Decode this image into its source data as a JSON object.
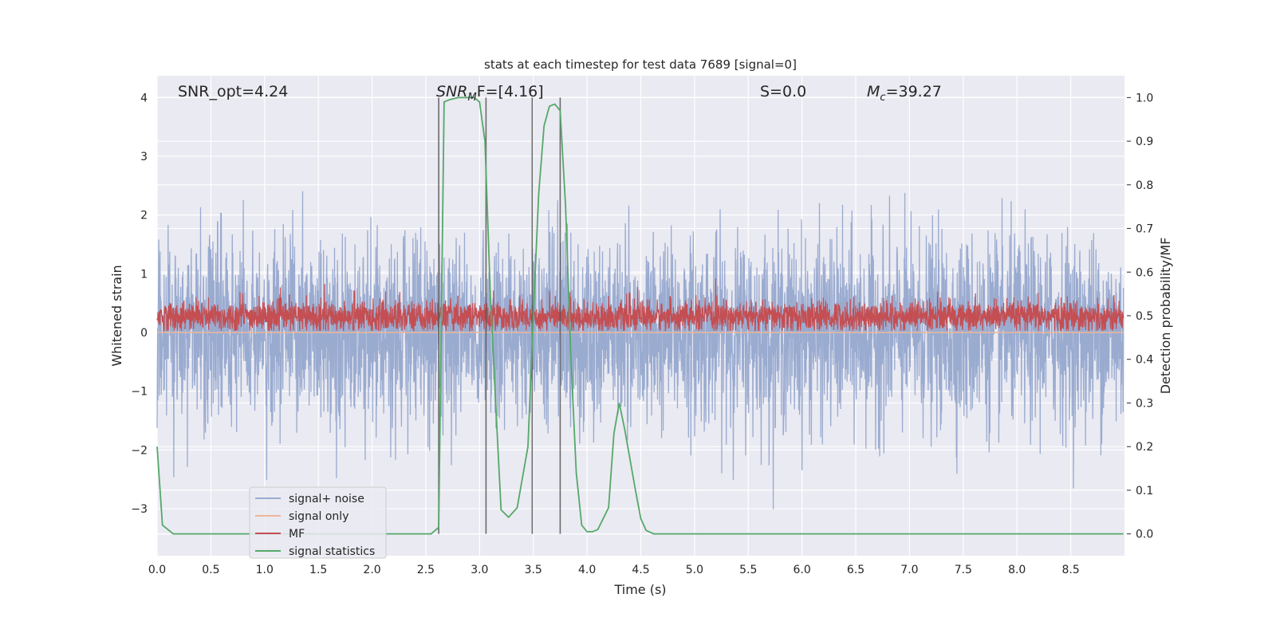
{
  "chart_data": {
    "type": "line",
    "title": "stats at each timestep for test data 7689 [signal=0]",
    "xlabel": "Time (s)",
    "ylabel": "Whitened strain",
    "ylabel_right": "Detection probability/MF",
    "xlim": [
      0,
      9.0
    ],
    "ylim": [
      -3.8,
      4.37
    ],
    "ylim_right": [
      -0.05,
      1.05
    ],
    "x_ticks": [
      "0.0",
      "0.5",
      "1.0",
      "1.5",
      "2.0",
      "2.5",
      "3.0",
      "3.5",
      "4.0",
      "4.5",
      "5.0",
      "5.5",
      "6.0",
      "6.5",
      "7.0",
      "7.5",
      "8.0",
      "8.5"
    ],
    "x_tick_values": [
      0,
      0.5,
      1,
      1.5,
      2,
      2.5,
      3,
      3.5,
      4,
      4.5,
      5,
      5.5,
      6,
      6.5,
      7,
      7.5,
      8,
      8.5
    ],
    "y_ticks": [
      "4",
      "3",
      "2",
      "1",
      "0",
      "−1",
      "−2",
      "−3"
    ],
    "y_tick_values": [
      4,
      3,
      2,
      1,
      0,
      -1,
      -2,
      -3
    ],
    "y_ticks_right": [
      "1.0",
      "0.9",
      "0.8",
      "0.7",
      "0.6",
      "0.5",
      "0.4",
      "0.3",
      "0.2",
      "0.1",
      "0.0"
    ],
    "y_tick_values_right": [
      1.0,
      0.9,
      0.8,
      0.7,
      0.6,
      0.5,
      0.4,
      0.3,
      0.2,
      0.1,
      0.0
    ],
    "grid": true,
    "annotations": {
      "snr_opt": "SNR_opt=4.24",
      "snr_mf_base": "SNR",
      "snr_mf_sub": "M",
      "snr_mf_rest": "F=[4.16]",
      "s": "S=0.0",
      "mc_base": "M",
      "mc_sub": "c",
      "mc_rest": "=39.27"
    },
    "legend": {
      "placement": "lower-left",
      "entries": [
        "signal+ noise",
        "signal only",
        "MF",
        "signal statistics"
      ]
    },
    "colors": {
      "background": "#eaeaf2",
      "signal_noise": "#9aabd0",
      "signal_only": "#eeb79a",
      "mf": "#c44e52",
      "statistics": "#55a868",
      "vlines": "#555555"
    },
    "series": [
      {
        "name": "signal+ noise",
        "axis": "left",
        "kind": "noise",
        "mean": 0,
        "std": 0.8,
        "t_start": 0,
        "t_end": 8.99
      },
      {
        "name": "signal only",
        "axis": "left",
        "x": [
          0,
          8.99
        ],
        "y": [
          0,
          0
        ]
      },
      {
        "name": "MF",
        "axis": "left",
        "kind": "noise",
        "mean": 0.27,
        "std": 0.13,
        "min": 0.03,
        "t_start": 0,
        "t_end": 8.99
      },
      {
        "name": "signal statistics",
        "axis": "right",
        "x": [
          0,
          0.05,
          0.15,
          0.5,
          1.0,
          1.5,
          2.0,
          2.55,
          2.62,
          2.67,
          2.72,
          2.8,
          2.95,
          3.0,
          3.05,
          3.1,
          3.15,
          3.2,
          3.27,
          3.35,
          3.45,
          3.5,
          3.55,
          3.6,
          3.65,
          3.7,
          3.75,
          3.8,
          3.85,
          3.9,
          3.95,
          4.0,
          4.05,
          4.1,
          4.2,
          4.25,
          4.3,
          4.35,
          4.45,
          4.5,
          4.55,
          4.62,
          5.0,
          6.0,
          7.0,
          8.0,
          8.99
        ],
        "y": [
          0.2,
          0.02,
          0.0,
          0.0,
          0.0,
          0.0,
          0.0,
          0.0,
          0.015,
          0.99,
          0.995,
          1.0,
          1.0,
          0.99,
          0.9,
          0.55,
          0.3,
          0.055,
          0.038,
          0.06,
          0.2,
          0.5,
          0.78,
          0.935,
          0.98,
          0.985,
          0.97,
          0.75,
          0.4,
          0.14,
          0.02,
          0.005,
          0.005,
          0.01,
          0.06,
          0.23,
          0.3,
          0.24,
          0.1,
          0.035,
          0.008,
          0.0,
          0.0,
          0.0,
          0.0,
          0.0,
          0.0
        ]
      }
    ],
    "vlines": {
      "axis": "right",
      "x": [
        2.62,
        3.06,
        3.49,
        3.75
      ],
      "ymin": 0,
      "ymax": 1
    }
  }
}
